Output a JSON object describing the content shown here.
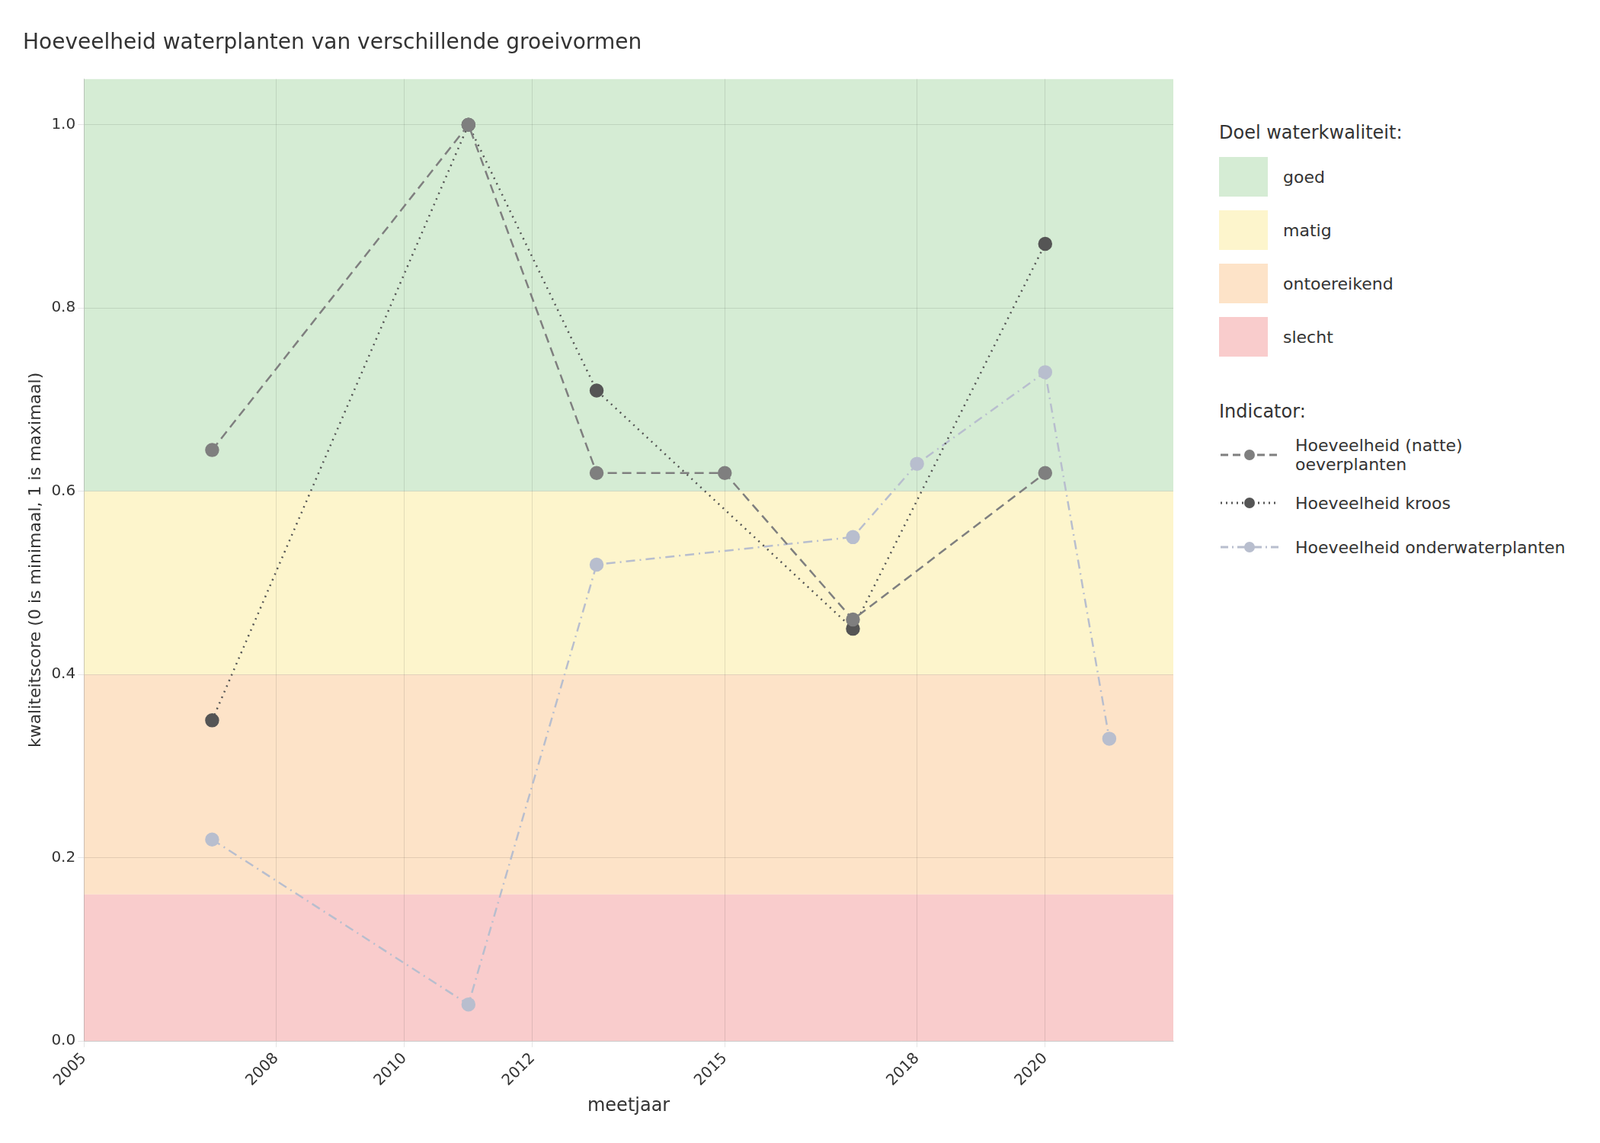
{
  "chart_data": {
    "type": "line",
    "title": "Hoeveelheid waterplanten van verschillende groeivormen",
    "xlabel": "meetjaar",
    "ylabel": "kwaliteitscore (0 is minimaal, 1 is maximaal)",
    "xlim": [
      2005,
      2022
    ],
    "xticks": [
      2005,
      2008,
      2010,
      2012,
      2015,
      2018,
      2020
    ],
    "ylim": [
      0.0,
      1.05
    ],
    "yticks": [
      {
        "value": 0.0,
        "label": "0.0"
      },
      0.2,
      0.4,
      0.6,
      0.8,
      {
        "value": 1.0,
        "label": "1.0"
      }
    ],
    "grid": true,
    "legend": "right",
    "legend_title": "Indicator:",
    "band_legend_title": "Doel waterkwaliteit:",
    "bands": [
      {
        "name": "goed",
        "color": "#d5ecd4",
        "from": 0.6,
        "to": 1.05
      },
      {
        "name": "matig",
        "color": "#fdf5cc",
        "from": 0.4,
        "to": 0.6
      },
      {
        "name": "ontoereikend",
        "color": "#fde3c8",
        "from": 0.16,
        "to": 0.4
      },
      {
        "name": "slecht",
        "color": "#f9cccc",
        "from": 0.0,
        "to": 0.16
      }
    ],
    "series": [
      {
        "name": "Hoeveelheid (natte) oeverplanten",
        "color": "#7f7f7f",
        "line_style": "dashed",
        "marker": "circle",
        "x": [
          2007,
          2011,
          2013,
          2015,
          2017,
          2020
        ],
        "values": [
          0.645,
          1.0,
          0.62,
          0.62,
          0.46,
          0.62
        ]
      },
      {
        "name": "Hoeveelheid kroos",
        "color": "#555555",
        "line_style": "dotted",
        "marker": "circle",
        "x": [
          2007,
          2011,
          2013,
          2017,
          2020
        ],
        "values": [
          0.35,
          1.0,
          0.71,
          0.45,
          0.87
        ]
      },
      {
        "name": "Hoeveelheid onderwaterplanten",
        "color": "#b8bece",
        "line_style": "dashdot",
        "marker": "circle",
        "x": [
          2007,
          2011,
          2013,
          2017,
          2018,
          2020,
          2021
        ],
        "values": [
          0.22,
          0.04,
          0.52,
          0.55,
          0.63,
          0.73,
          0.33
        ]
      }
    ]
  }
}
